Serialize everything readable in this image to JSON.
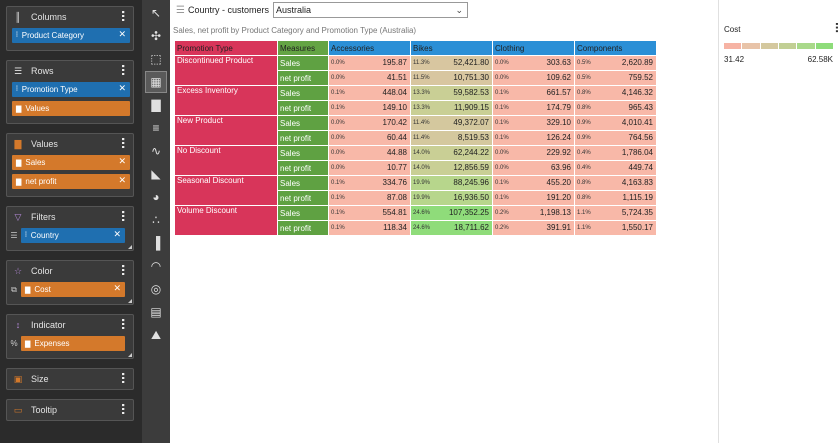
{
  "shelf": {
    "columns": {
      "title": "Columns",
      "fields": [
        {
          "label": "Product Category",
          "kind": "dimension"
        }
      ]
    },
    "rows": {
      "title": "Rows",
      "fields": [
        {
          "label": "Promotion Type",
          "kind": "dimension"
        },
        {
          "label": "Values",
          "kind": "measure"
        }
      ]
    },
    "values": {
      "title": "Values",
      "fields": [
        {
          "label": "Sales",
          "kind": "measure"
        },
        {
          "label": "net profit",
          "kind": "measure"
        }
      ]
    },
    "filters": {
      "title": "Filters",
      "fields": [
        {
          "label": "Country",
          "kind": "dimension"
        }
      ]
    },
    "color": {
      "title": "Color",
      "fields": [
        {
          "label": "Cost",
          "kind": "measure"
        }
      ]
    },
    "indicator": {
      "title": "Indicator",
      "fields": [
        {
          "label": "Expenses",
          "kind": "measure"
        }
      ]
    },
    "size": {
      "title": "Size"
    },
    "tooltip": {
      "title": "Tooltip"
    }
  },
  "filter_bar": {
    "title": "Country - customers",
    "selected": "Australia"
  },
  "subtitle": "Sales, net profit by Product Category and Promotion Type (Australia)",
  "table": {
    "headers": [
      "Promotion Type",
      "Measures",
      "Accessories",
      "Bikes",
      "Clothing",
      "Components"
    ],
    "rows": [
      {
        "promo": "Discontinued Product",
        "sales": [
          [
            "0.0%",
            "195.87"
          ],
          [
            "11.3%",
            "52,421.80"
          ],
          [
            "0.0%",
            "303.63"
          ],
          [
            "0.5%",
            "2,620.89"
          ]
        ],
        "profit": [
          [
            "0.0%",
            "41.51"
          ],
          [
            "11.5%",
            "10,751.30"
          ],
          [
            "0.0%",
            "109.62"
          ],
          [
            "0.5%",
            "759.52"
          ]
        ]
      },
      {
        "promo": "Excess Inventory",
        "sales": [
          [
            "0.1%",
            "448.04"
          ],
          [
            "13.3%",
            "59,582.53"
          ],
          [
            "0.1%",
            "661.57"
          ],
          [
            "0.8%",
            "4,146.32"
          ]
        ],
        "profit": [
          [
            "0.1%",
            "149.10"
          ],
          [
            "13.3%",
            "11,909.15"
          ],
          [
            "0.1%",
            "174.79"
          ],
          [
            "0.8%",
            "965.43"
          ]
        ]
      },
      {
        "promo": "New Product",
        "sales": [
          [
            "0.0%",
            "170.42"
          ],
          [
            "11.4%",
            "49,372.07"
          ],
          [
            "0.1%",
            "329.10"
          ],
          [
            "0.9%",
            "4,010.41"
          ]
        ],
        "profit": [
          [
            "0.0%",
            "60.44"
          ],
          [
            "11.4%",
            "8,519.53"
          ],
          [
            "0.1%",
            "126.24"
          ],
          [
            "0.9%",
            "764.56"
          ]
        ]
      },
      {
        "promo": "No Discount",
        "sales": [
          [
            "0.0%",
            "44.88"
          ],
          [
            "14.0%",
            "62,244.22"
          ],
          [
            "0.0%",
            "229.92"
          ],
          [
            "0.4%",
            "1,786.04"
          ]
        ],
        "profit": [
          [
            "0.0%",
            "10.77"
          ],
          [
            "14.0%",
            "12,856.59"
          ],
          [
            "0.0%",
            "63.96"
          ],
          [
            "0.4%",
            "449.74"
          ]
        ]
      },
      {
        "promo": "Seasonal Discount",
        "sales": [
          [
            "0.1%",
            "334.76"
          ],
          [
            "19.9%",
            "88,245.96"
          ],
          [
            "0.1%",
            "455.20"
          ],
          [
            "0.8%",
            "4,163.83"
          ]
        ],
        "profit": [
          [
            "0.1%",
            "87.08"
          ],
          [
            "19.9%",
            "16,936.50"
          ],
          [
            "0.1%",
            "191.20"
          ],
          [
            "0.8%",
            "1,115.19"
          ]
        ]
      },
      {
        "promo": "Volume Discount",
        "sales": [
          [
            "0.1%",
            "554.81"
          ],
          [
            "24.6%",
            "107,352.25"
          ],
          [
            "0.2%",
            "1,198.13"
          ],
          [
            "1.1%",
            "5,724.35"
          ]
        ],
        "profit": [
          [
            "0.1%",
            "118.34"
          ],
          [
            "24.6%",
            "18,711.62"
          ],
          [
            "0.2%",
            "391.91"
          ],
          [
            "1.1%",
            "1,550.17"
          ]
        ]
      }
    ],
    "measure_labels": {
      "sales": "Sales",
      "profit": "net profit"
    }
  },
  "cell_colors": {
    "discontinued": [
      "#f8b8a8",
      "#d8c6a0",
      "#f8b8a8",
      "#f8b8a8"
    ],
    "excess": [
      "#f8b8a8",
      "#c9cf95",
      "#f8b8a8",
      "#f8b8a8"
    ],
    "newprod": [
      "#f8b8a8",
      "#d4c89e",
      "#f8b8a8",
      "#f8b8a8"
    ],
    "nodisc": [
      "#f8b8a8",
      "#c9cf95",
      "#f8b8a8",
      "#f8b8a8"
    ],
    "seasonal": [
      "#f8b8a8",
      "#b7d68c",
      "#f8b8a8",
      "#f8b8a8"
    ],
    "volume": [
      "#f8b8a8",
      "#8fdc7a",
      "#f8b8a8",
      "#f8b8a8"
    ]
  },
  "legend": {
    "title": "Cost",
    "min": "31.42",
    "max": "62.58K",
    "colors": [
      "#f6b3a4",
      "#e8c3a8",
      "#d4c89e",
      "#c1cf94",
      "#a9d98a",
      "#8edc7a"
    ]
  },
  "colors": {
    "promo": "#d8355a",
    "measure": "#5fa142",
    "category": "#2b8fd6",
    "pill_blue": "#1f6fb0",
    "pill_orange": "#d4792b"
  }
}
